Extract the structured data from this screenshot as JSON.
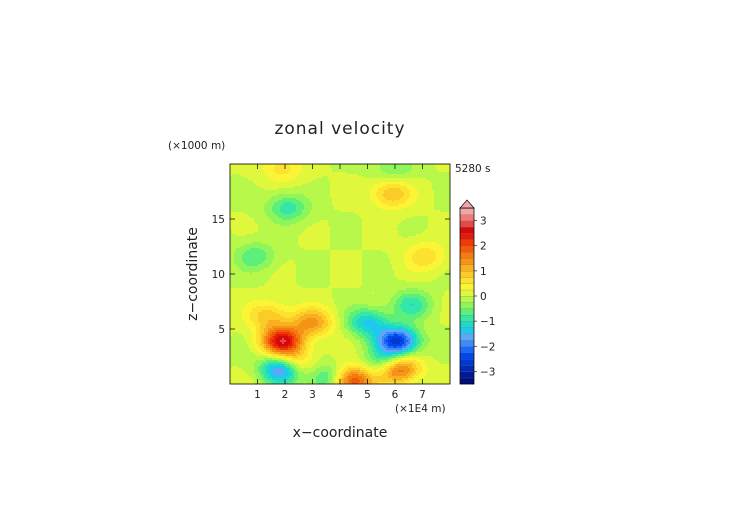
{
  "chart_data": {
    "type": "heatmap",
    "title": "zonal velocity",
    "xlabel": "x−coordinate",
    "ylabel": "z−coordinate",
    "x_unit": "(×1E4 m)",
    "y_unit": "(×1000 m)",
    "time_label": "5280 s",
    "xlim": [
      0,
      8
    ],
    "ylim": [
      0,
      20
    ],
    "x_ticks": [
      1,
      2,
      3,
      4,
      5,
      6,
      7
    ],
    "y_ticks": [
      5,
      10,
      15
    ],
    "colorbar": {
      "min": -3.5,
      "max": 3.5,
      "step": 0.25,
      "ticks": [
        3,
        2,
        1,
        0,
        -1,
        -2,
        -3
      ],
      "tick_labels": [
        "3",
        "2",
        "1",
        "0",
        "−1",
        "−2",
        "−3"
      ],
      "extend": "max",
      "colors": [
        "#000c7a",
        "#001a95",
        "#0029b5",
        "#0038d2",
        "#0048ec",
        "#1c66f8",
        "#3f8af8",
        "#5ea8f6",
        "#20c7ee",
        "#20d8c8",
        "#34e6a8",
        "#5cf07a",
        "#8ef65a",
        "#b8f84a",
        "#e0f83c",
        "#fbf536",
        "#fde230",
        "#fbcb28",
        "#f8b020",
        "#f59518",
        "#f47a10",
        "#f25a0a",
        "#ee3a08",
        "#e61a08",
        "#d40a0a",
        "#e54848",
        "#ef7a7a",
        "#f4a6a6"
      ]
    },
    "features": [
      {
        "name": "positive lobe",
        "x": 1.9,
        "z": 3.9,
        "value": 2.6
      },
      {
        "name": "positive lobe",
        "x": 6.1,
        "z": 1.4,
        "value": 2.3
      },
      {
        "name": "negative lobe",
        "x": 6.1,
        "z": 3.9,
        "value": -2.6
      },
      {
        "name": "negative lobe",
        "x": 1.9,
        "z": 1.4,
        "value": -2.3
      },
      {
        "name": "positive band",
        "x": 2.3,
        "z": 1.9,
        "value": 1.3
      },
      {
        "name": "negative band",
        "x": 5.7,
        "z": 1.9,
        "value": -1.3
      },
      {
        "name": "negative band",
        "x": 3.6,
        "z": 0.5,
        "value": -1.2
      },
      {
        "name": "positive band",
        "x": 4.4,
        "z": 0.3,
        "value": 2.3
      },
      {
        "name": "negative arm",
        "x": 5.0,
        "z": 5.6,
        "value": -1.3
      },
      {
        "name": "positive arm",
        "x": 3.0,
        "z": 5.6,
        "value": 1.3
      },
      {
        "name": "positive patch",
        "x": 5.9,
        "z": 17.3,
        "value": 1.0
      },
      {
        "name": "positive patch",
        "x": 1.4,
        "z": 6.2,
        "value": 0.9
      },
      {
        "name": "negative patch",
        "x": 2.1,
        "z": 16.0,
        "value": -0.9
      },
      {
        "name": "negative patch",
        "x": 6.6,
        "z": 7.2,
        "value": -0.9
      },
      {
        "name": "negative patch",
        "x": 0.9,
        "z": 11.6,
        "value": -0.7
      },
      {
        "name": "positive patch",
        "x": 7.1,
        "z": 11.6,
        "value": 0.7
      },
      {
        "name": "positive patch",
        "x": 1.9,
        "z": 19.6,
        "value": 0.6
      },
      {
        "name": "negative patch",
        "x": 6.0,
        "z": 19.6,
        "value": -0.5
      }
    ]
  }
}
